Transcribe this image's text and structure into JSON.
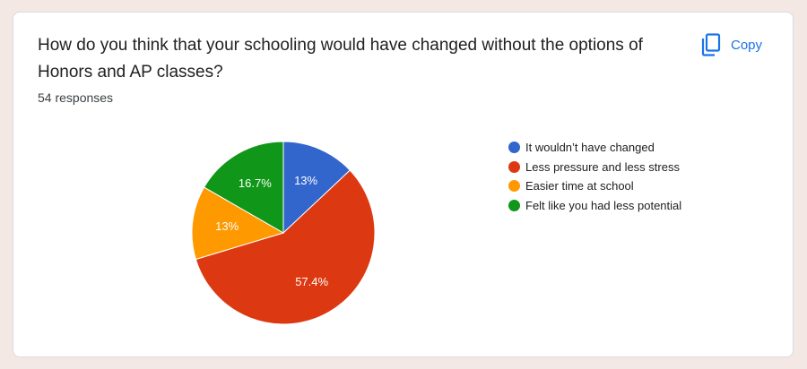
{
  "question": {
    "title": "How do you think that your schooling would have changed without the options of Honors and AP classes?",
    "responses": "54 responses"
  },
  "actions": {
    "copy_label": "Copy",
    "copy_icon": "copy-icon"
  },
  "colors": {
    "accent": "#1a73e8"
  },
  "chart_data": {
    "type": "pie",
    "slices": [
      {
        "label": "It wouldn’t have changed",
        "value": 13.0,
        "display": "13%",
        "color": "#3366cc"
      },
      {
        "label": "Less pressure and less stress",
        "value": 57.4,
        "display": "57.4%",
        "color": "#dc3912"
      },
      {
        "label": "Easier time at school",
        "value": 13.0,
        "display": "13%",
        "color": "#ff9900"
      },
      {
        "label": "Felt like you had less potential",
        "value": 16.7,
        "display": "16.7%",
        "color": "#109618"
      }
    ],
    "start_angle_deg": 90,
    "direction": "clockwise",
    "legend_position": "right"
  }
}
